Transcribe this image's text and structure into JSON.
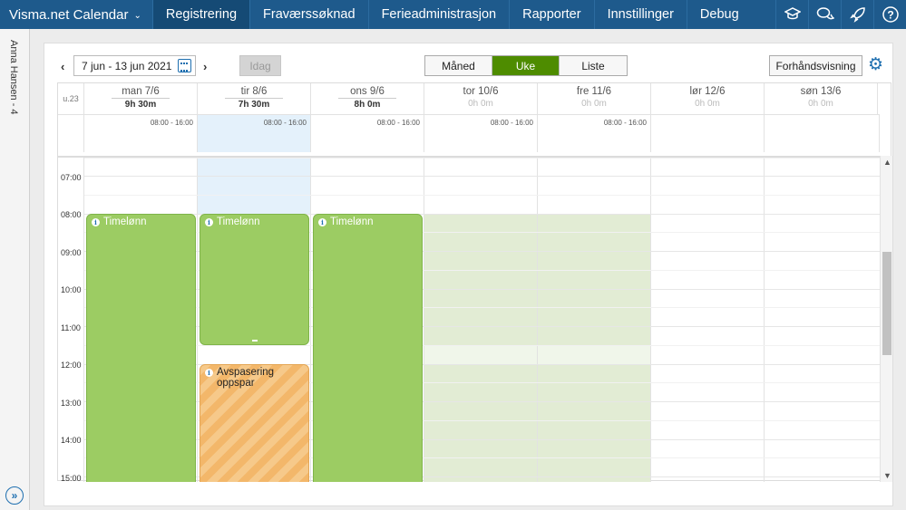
{
  "nav": {
    "brand": "Visma.net Calendar",
    "tabs": [
      {
        "label": "Registrering",
        "active": true
      },
      {
        "label": "Fraværssøknad",
        "active": false
      },
      {
        "label": "Ferieadministrasjon",
        "active": false
      },
      {
        "label": "Rapporter",
        "active": false
      },
      {
        "label": "Innstillinger",
        "active": false
      },
      {
        "label": "Debug",
        "active": false
      }
    ],
    "icons": [
      "graduation-cap-icon",
      "chat-icon",
      "rocket-icon",
      "help-icon"
    ]
  },
  "sidebar": {
    "user": "Anna Hansen - 4"
  },
  "toolbar": {
    "date_range": "7 jun - 13 jun 2021",
    "today_label": "Idag",
    "views": [
      {
        "label": "Måned",
        "active": false
      },
      {
        "label": "Uke",
        "active": true
      },
      {
        "label": "Liste",
        "active": false
      }
    ],
    "preview_label": "Forhåndsvisning"
  },
  "calendar": {
    "week": "u.23",
    "days": [
      {
        "name": "man 7/6",
        "hours": "9h 30m",
        "work": "08:00 - 16:00"
      },
      {
        "name": "tir 8/6",
        "hours": "7h 30m",
        "work": "08:00 - 16:00"
      },
      {
        "name": "ons 9/6",
        "hours": "8h 0m",
        "work": "08:00 - 16:00"
      },
      {
        "name": "tor 10/6",
        "hours": "0h 0m",
        "work": "08:00 - 16:00"
      },
      {
        "name": "fre 11/6",
        "hours": "0h 0m",
        "work": "08:00 - 16:00"
      },
      {
        "name": "lør 12/6",
        "hours": "0h 0m",
        "work": ""
      },
      {
        "name": "søn 13/6",
        "hours": "0h 0m",
        "work": ""
      }
    ],
    "times": [
      "07:00",
      "08:00",
      "09:00",
      "10:00",
      "11:00",
      "12:00",
      "13:00",
      "14:00",
      "15:00"
    ],
    "events": {
      "mon": "Timelønn",
      "tue1": "Timelønn",
      "tue2": "Avspasering oppspar",
      "wed": "Timelønn"
    }
  },
  "colors": {
    "nav": "#1e5a8c",
    "accent": "#4e8c00",
    "event": "#9ccc63",
    "stripe": "#f3b76a"
  }
}
